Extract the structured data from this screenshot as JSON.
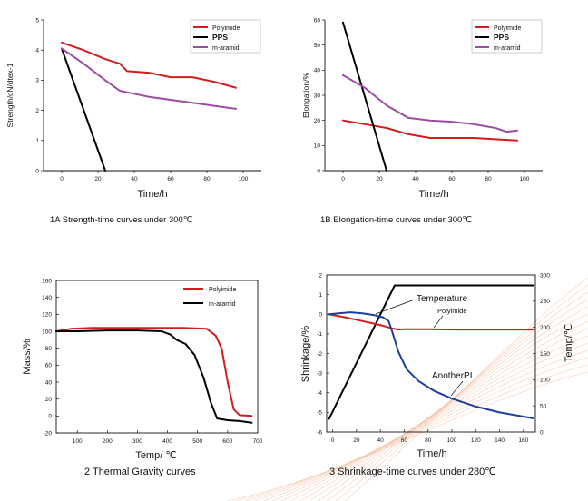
{
  "colors": {
    "polyimide": "#d11d1d",
    "pps": "#000000",
    "m_aramid": "#9b4ca3",
    "another_pi": "#1d3f9e",
    "temperature": "#000000",
    "deco": "#f2b99a"
  },
  "chart_data": [
    {
      "id": "1A",
      "type": "line",
      "caption": "1A Strength-time curves under 300℃",
      "xlabel": "Time/h",
      "ylabel": "Strength/cN/dtex-1",
      "xlim": [
        -10,
        110
      ],
      "ylim": [
        0,
        5
      ],
      "xticks": [
        "0",
        "20",
        "40",
        "60",
        "80",
        "100"
      ],
      "xtick_values": [
        0,
        20,
        40,
        60,
        80,
        100
      ],
      "yticks": [
        "0",
        "1",
        "2",
        "3",
        "4",
        "5"
      ],
      "ytick_values": [
        0,
        1,
        2,
        3,
        4,
        5
      ],
      "legend": [
        "Polyimide",
        "PPS",
        "m-aramid"
      ],
      "series": [
        {
          "name": "Polyimide",
          "color": "polyimide",
          "x": [
            0,
            12,
            24,
            32,
            36,
            48,
            60,
            72,
            84,
            96
          ],
          "y": [
            4.25,
            4.0,
            3.7,
            3.55,
            3.3,
            3.25,
            3.1,
            3.1,
            2.95,
            2.75
          ]
        },
        {
          "name": "PPS",
          "color": "pps",
          "x": [
            0,
            24
          ],
          "y": [
            4.05,
            0
          ]
        },
        {
          "name": "m-aramid",
          "color": "m_aramid",
          "x": [
            0,
            12,
            24,
            32,
            36,
            48,
            60,
            72,
            84,
            96
          ],
          "y": [
            4.05,
            3.55,
            3.0,
            2.65,
            2.6,
            2.45,
            2.35,
            2.25,
            2.15,
            2.05
          ]
        }
      ]
    },
    {
      "id": "1B",
      "type": "line",
      "caption": "1B Elongation-time curves under 300℃",
      "xlabel": "Time/h",
      "ylabel": "Elongation/%",
      "xlim": [
        -10,
        110
      ],
      "ylim": [
        0,
        60
      ],
      "xticks": [
        "0",
        "20",
        "40",
        "60",
        "80",
        "100"
      ],
      "xtick_values": [
        0,
        20,
        40,
        60,
        80,
        100
      ],
      "yticks": [
        "0",
        "10",
        "20",
        "30",
        "40",
        "50",
        "60"
      ],
      "ytick_values": [
        0,
        10,
        20,
        30,
        40,
        50,
        60
      ],
      "legend": [
        "Polyimide",
        "PPS",
        "m-aramid"
      ],
      "series": [
        {
          "name": "Polyimide",
          "color": "polyimide",
          "x": [
            0,
            12,
            24,
            36,
            48,
            60,
            72,
            84,
            96
          ],
          "y": [
            20,
            18.5,
            17,
            14.5,
            13,
            13,
            13,
            12.5,
            12
          ]
        },
        {
          "name": "PPS",
          "color": "pps",
          "x": [
            0,
            24
          ],
          "y": [
            59,
            0
          ]
        },
        {
          "name": "m-aramid",
          "color": "m_aramid",
          "x": [
            0,
            12,
            24,
            36,
            48,
            60,
            72,
            84,
            90,
            96
          ],
          "y": [
            38,
            33,
            26,
            21,
            20,
            19.5,
            18.5,
            17,
            15.5,
            16
          ]
        }
      ]
    },
    {
      "id": "2",
      "type": "line",
      "caption": "2 Thermal Gravity curves",
      "xlabel": "Temp/ ℃",
      "ylabel": "Mass/%",
      "xlim": [
        30,
        700
      ],
      "ylim": [
        -20,
        160
      ],
      "xticks": [
        "100",
        "200",
        "300",
        "400",
        "500",
        "600",
        "700"
      ],
      "xtick_values": [
        100,
        200,
        300,
        400,
        500,
        600,
        700
      ],
      "yticks": [
        "-20",
        "0",
        "20",
        "40",
        "60",
        "80",
        "100",
        "120",
        "140",
        "160"
      ],
      "ytick_values": [
        -20,
        0,
        20,
        40,
        60,
        80,
        100,
        120,
        140,
        160
      ],
      "legend": [
        "Polyimide",
        "m-aramid"
      ],
      "series": [
        {
          "name": "Polyimide",
          "color": "polyimide",
          "x": [
            30,
            80,
            150,
            250,
            350,
            450,
            530,
            560,
            580,
            600,
            620,
            640,
            680
          ],
          "y": [
            100,
            103,
            104,
            104,
            104,
            104,
            103,
            95,
            80,
            40,
            8,
            1,
            0
          ]
        },
        {
          "name": "m-aramid",
          "color": "pps",
          "x": [
            30,
            100,
            200,
            300,
            380,
            410,
            430,
            460,
            490,
            520,
            545,
            565,
            600,
            640,
            680
          ],
          "y": [
            100,
            100,
            101,
            101,
            100,
            96,
            90,
            85,
            72,
            45,
            15,
            -3,
            -5,
            -6,
            -8
          ]
        }
      ]
    },
    {
      "id": "3",
      "type": "line",
      "caption": "3 Shrinkage-time curves under 280℃",
      "xlabel": "Time/h",
      "ylabel": "Shrinkage/%",
      "ylabel_right": "Temp/℃",
      "xlim": [
        -5,
        170
      ],
      "ylim": [
        -6,
        2
      ],
      "ylim_right": [
        0,
        300
      ],
      "xticks": [
        "0",
        "20",
        "40",
        "60",
        "80",
        "100",
        "120",
        "140",
        "160"
      ],
      "xtick_values": [
        0,
        20,
        40,
        60,
        80,
        100,
        120,
        140,
        160
      ],
      "yticks": [
        "-6",
        "-5",
        "-4",
        "-3",
        "-2",
        "-1",
        "0",
        "1",
        "2"
      ],
      "ytick_values": [
        -6,
        -5,
        -4,
        -3,
        -2,
        -1,
        0,
        1,
        2
      ],
      "yticks_right": [
        "0",
        "50",
        "100",
        "150",
        "200",
        "250",
        "300"
      ],
      "ytick_values_right": [
        0,
        50,
        100,
        150,
        200,
        250,
        300
      ],
      "annotations": [
        "Temperature",
        "Polyimide",
        "AnotherPI"
      ],
      "series": [
        {
          "name": "Temperature",
          "axis": "right",
          "color": "temperature",
          "x": [
            -3,
            52,
            168
          ],
          "y": [
            25,
            280,
            280
          ]
        },
        {
          "name": "Polyimide",
          "color": "polyimide",
          "x": [
            -3,
            10,
            25,
            40,
            50,
            55,
            60,
            80,
            100,
            130,
            168
          ],
          "y": [
            0,
            -0.15,
            -0.35,
            -0.55,
            -0.72,
            -0.78,
            -0.76,
            -0.76,
            -0.78,
            -0.78,
            -0.78
          ]
        },
        {
          "name": "AnotherPI",
          "color": "another_pi",
          "x": [
            -3,
            5,
            15,
            25,
            35,
            42,
            47,
            50,
            55,
            62,
            72,
            85,
            100,
            120,
            140,
            168
          ],
          "y": [
            0,
            0.05,
            0.1,
            0.05,
            -0.05,
            -0.15,
            -0.35,
            -0.9,
            -1.9,
            -2.8,
            -3.4,
            -3.9,
            -4.3,
            -4.7,
            -5.0,
            -5.3
          ]
        }
      ]
    }
  ]
}
